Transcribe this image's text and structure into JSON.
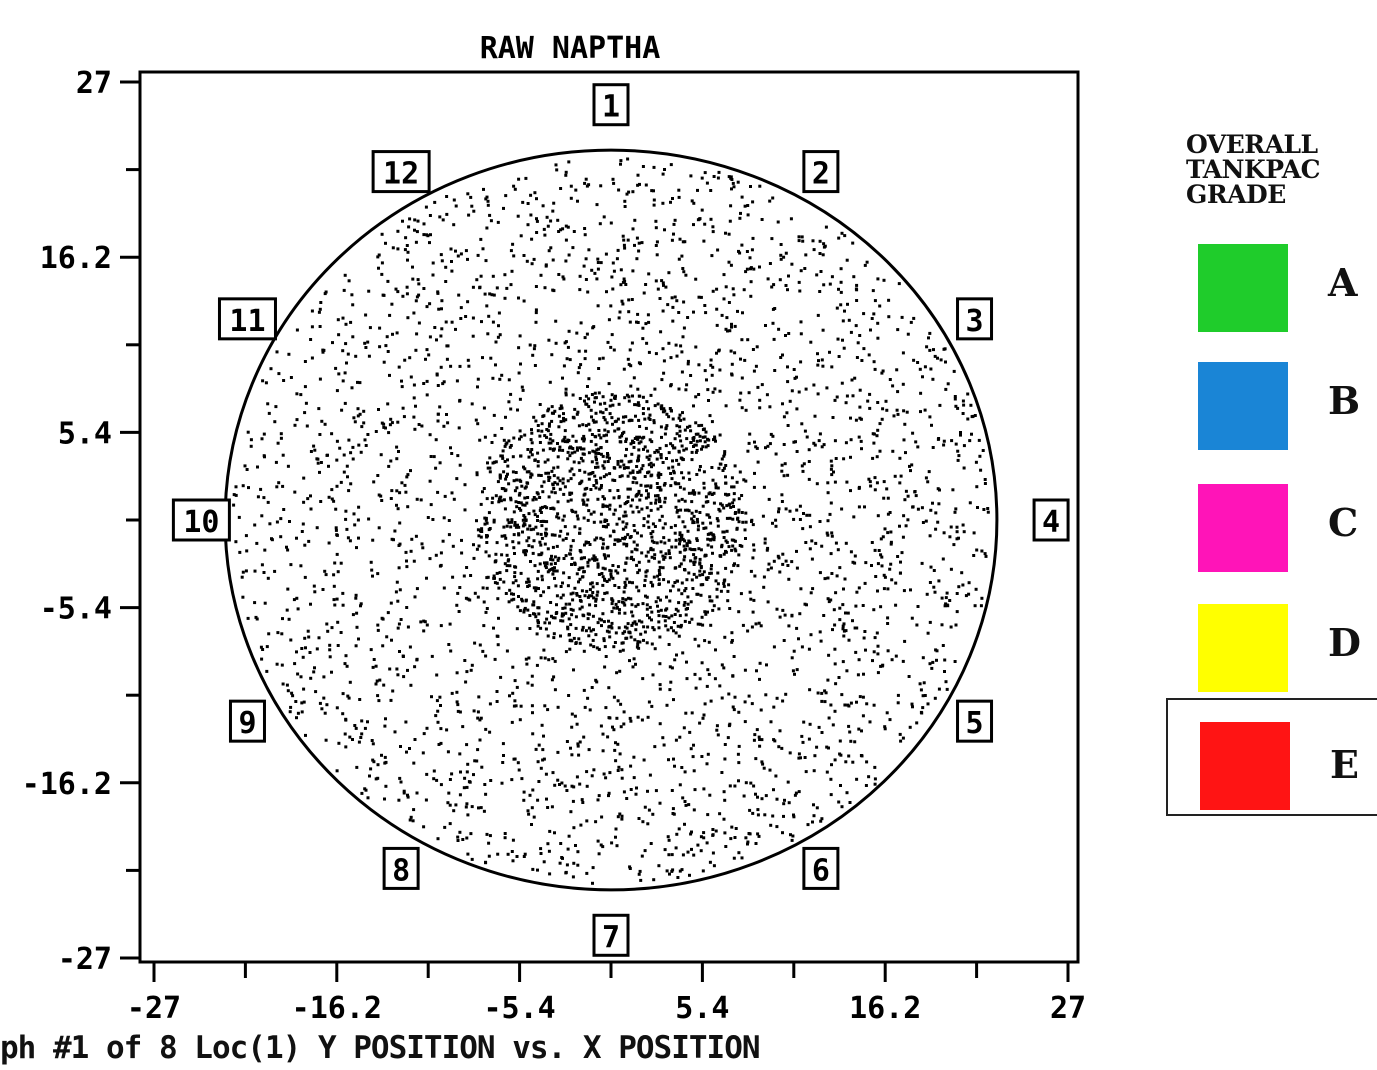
{
  "chart_data": {
    "type": "scatter",
    "title": "RAW NAPTHA",
    "xlabel": "",
    "ylabel": "",
    "xlim": [
      -27,
      27
    ],
    "ylim": [
      -27,
      27
    ],
    "x_ticks": [
      "-27",
      "-16.2",
      "-5.4",
      "5.4",
      "16.2",
      "27"
    ],
    "x_tick_values": [
      -27,
      -16.2,
      -5.4,
      5.4,
      16.2,
      27
    ],
    "y_ticks": [
      "27",
      "16.2",
      "5.4",
      "-5.4",
      "-16.2",
      "-27"
    ],
    "y_tick_values": [
      27,
      16.2,
      5.4,
      -5.4,
      -16.2,
      -27
    ],
    "tank_radius": 22.8,
    "point_count": 4200,
    "point_color": "#000000",
    "sector_labels": [
      "1",
      "2",
      "3",
      "4",
      "5",
      "6",
      "7",
      "8",
      "9",
      "10",
      "11",
      "12"
    ],
    "grid": false
  },
  "legend": {
    "title_lines": [
      "OVERALL",
      "TANKPAC",
      "GRADE"
    ],
    "items": [
      {
        "label": "A",
        "color": "#1fcc2b",
        "selected": false
      },
      {
        "label": "B",
        "color": "#1a85d6",
        "selected": false
      },
      {
        "label": "C",
        "color": "#ff14b8",
        "selected": false
      },
      {
        "label": "D",
        "color": "#ffff00",
        "selected": false
      },
      {
        "label": "E",
        "color": "#ff1414",
        "selected": true
      }
    ]
  },
  "footer_text": "ph #1 of 8 Loc(1) Y POSITION vs. X POSITION"
}
